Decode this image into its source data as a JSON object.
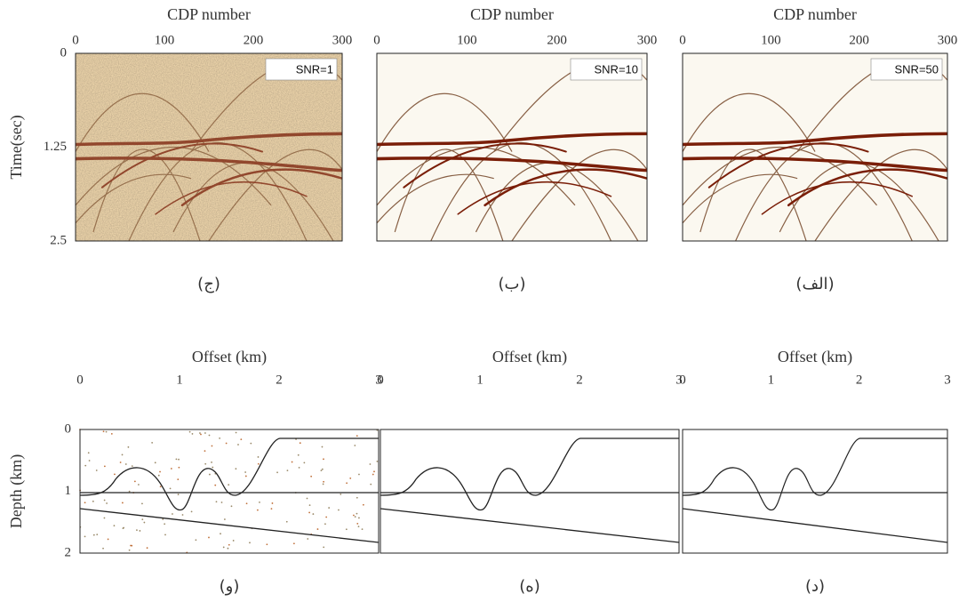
{
  "panels": [
    {
      "x_label": "CDP number",
      "x_ticks": [
        0,
        100,
        200,
        300
      ],
      "y_label": "Time(sec)",
      "y_ticks": [
        0,
        1.25,
        2.5
      ],
      "annotation": "SNR=1",
      "caption": "(ج)"
    },
    {
      "x_label": "CDP number",
      "x_ticks": [
        0,
        100,
        200,
        300
      ],
      "annotation": "SNR=10",
      "caption": "(ب)"
    },
    {
      "x_label": "CDP number",
      "x_ticks": [
        0,
        100,
        200,
        300
      ],
      "annotation": "SNR=50",
      "caption": "(الف)"
    },
    {
      "x_label": "Offset (km)",
      "x_ticks": [
        0,
        1,
        2,
        3
      ],
      "y_label": "Depth (km)",
      "y_ticks": [
        0,
        1,
        2
      ],
      "caption": "(و)"
    },
    {
      "x_label": "Offset (km)",
      "x_ticks": [
        0,
        1,
        2,
        3
      ],
      "caption": "(ه)"
    },
    {
      "x_label": "Offset (km)",
      "x_ticks": [
        0,
        1,
        2,
        3
      ],
      "caption": "(د)"
    }
  ]
}
